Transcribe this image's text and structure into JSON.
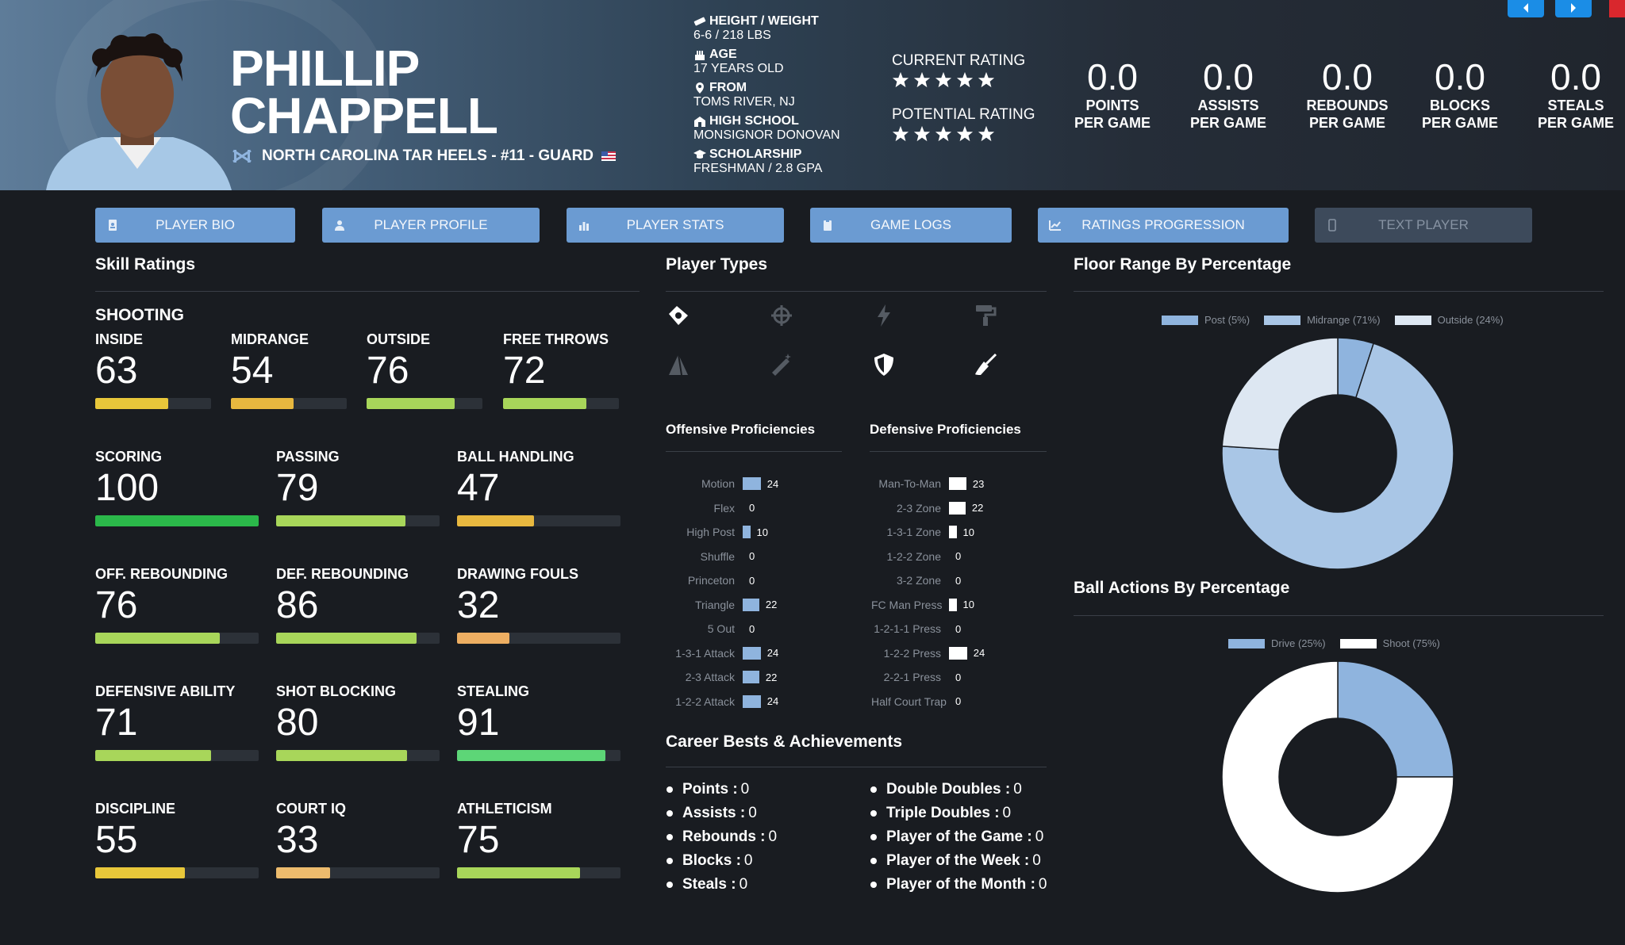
{
  "header": {
    "first_name": "PHILLIP",
    "last_name": "CHAPPELL",
    "team_line": "NORTH CAROLINA TAR HEELS - #11 - GUARD",
    "info": [
      {
        "label": "HEIGHT / WEIGHT",
        "value": "6-6 / 218 LBS",
        "icon": "ruler-icon"
      },
      {
        "label": "AGE",
        "value": "17 YEARS OLD",
        "icon": "cake-icon"
      },
      {
        "label": "FROM",
        "value": "TOMS RIVER, NJ",
        "icon": "location-pin-icon"
      },
      {
        "label": "HIGH SCHOOL",
        "value": "MONSIGNOR DONOVAN",
        "icon": "school-icon"
      },
      {
        "label": "SCHOLARSHIP",
        "value": "FRESHMAN / 2.8 GPA",
        "icon": "graduation-cap-icon"
      }
    ],
    "current_rating_label": "CURRENT RATING",
    "current_rating_stars": 5,
    "potential_rating_label": "POTENTIAL RATING",
    "potential_rating_stars": 5,
    "stats": [
      {
        "value": "0.0",
        "label1": "POINTS",
        "label2": "PER GAME"
      },
      {
        "value": "0.0",
        "label1": "ASSISTS",
        "label2": "PER GAME"
      },
      {
        "value": "0.0",
        "label1": "REBOUNDS",
        "label2": "PER GAME"
      },
      {
        "value": "0.0",
        "label1": "BLOCKS",
        "label2": "PER GAME"
      },
      {
        "value": "0.0",
        "label1": "STEALS",
        "label2": "PER GAME"
      }
    ]
  },
  "tabs": [
    {
      "label": "PLAYER BIO",
      "icon": "id-card-icon",
      "enabled": true
    },
    {
      "label": "PLAYER PROFILE",
      "icon": "profile-icon",
      "enabled": true
    },
    {
      "label": "PLAYER STATS",
      "icon": "bar-chart-icon",
      "enabled": true
    },
    {
      "label": "GAME LOGS",
      "icon": "clipboard-icon",
      "enabled": true
    },
    {
      "label": "RATINGS PROGRESSION",
      "icon": "line-chart-icon",
      "enabled": true
    },
    {
      "label": "TEXT PLAYER",
      "icon": "phone-icon",
      "enabled": false
    }
  ],
  "skills": {
    "title": "Skill Ratings",
    "group_title": "SHOOTING",
    "items": [
      {
        "label": "INSIDE",
        "value": 63,
        "color": "#e8c73a"
      },
      {
        "label": "MIDRANGE",
        "value": 54,
        "color": "#e8b83f"
      },
      {
        "label": "OUTSIDE",
        "value": 76,
        "color": "#a8d65a"
      },
      {
        "label": "FREE THROWS",
        "value": 72,
        "color": "#a8d65a"
      },
      {
        "label": "SCORING",
        "value": 100,
        "color": "#2bb84a"
      },
      {
        "label": "PASSING",
        "value": 79,
        "color": "#a8d65a"
      },
      {
        "label": "BALL HANDLING",
        "value": 47,
        "color": "#e8b83f"
      },
      {
        "label": "OFF. REBOUNDING",
        "value": 76,
        "color": "#a8d65a"
      },
      {
        "label": "DEF. REBOUNDING",
        "value": 86,
        "color": "#a8d65a"
      },
      {
        "label": "DRAWING FOULS",
        "value": 32,
        "color": "#edae62"
      },
      {
        "label": "DEFENSIVE ABILITY",
        "value": 71,
        "color": "#a8d65a"
      },
      {
        "label": "SHOT BLOCKING",
        "value": 80,
        "color": "#a8d65a"
      },
      {
        "label": "STEALING",
        "value": 91,
        "color": "#5dd677"
      },
      {
        "label": "DISCIPLINE",
        "value": 55,
        "color": "#e8c73a"
      },
      {
        "label": "COURT IQ",
        "value": 33,
        "color": "#edbb6d"
      },
      {
        "label": "ATHLETICISM",
        "value": 75,
        "color": "#a8d65a"
      }
    ]
  },
  "player_types": {
    "title": "Player Types",
    "icons": [
      {
        "name": "ball-handler-icon",
        "active": true
      },
      {
        "name": "crosshair-icon",
        "active": false
      },
      {
        "name": "lightning-icon",
        "active": false
      },
      {
        "name": "paint-roller-icon",
        "active": false
      },
      {
        "name": "pyramid-icon",
        "active": false
      },
      {
        "name": "magic-wand-icon",
        "active": false
      },
      {
        "name": "shield-icon",
        "active": true
      },
      {
        "name": "broom-icon",
        "active": true
      }
    ]
  },
  "offensive": {
    "title": "Offensive Proficiencies",
    "rows": [
      {
        "name": "Motion",
        "value": 24
      },
      {
        "name": "Flex",
        "value": 0
      },
      {
        "name": "High Post",
        "value": 10
      },
      {
        "name": "Shuffle",
        "value": 0
      },
      {
        "name": "Princeton",
        "value": 0
      },
      {
        "name": "Triangle",
        "value": 22
      },
      {
        "name": "5 Out",
        "value": 0
      },
      {
        "name": "1-3-1 Attack",
        "value": 24
      },
      {
        "name": "2-3 Attack",
        "value": 22
      },
      {
        "name": "1-2-2 Attack",
        "value": 24
      }
    ]
  },
  "defensive": {
    "title": "Defensive Proficiencies",
    "rows": [
      {
        "name": "Man-To-Man",
        "value": 23
      },
      {
        "name": "2-3 Zone",
        "value": 22
      },
      {
        "name": "1-3-1 Zone",
        "value": 10
      },
      {
        "name": "1-2-2 Zone",
        "value": 0
      },
      {
        "name": "3-2 Zone",
        "value": 0
      },
      {
        "name": "FC Man Press",
        "value": 10
      },
      {
        "name": "1-2-1-1 Press",
        "value": 0
      },
      {
        "name": "1-2-2 Press",
        "value": 24
      },
      {
        "name": "2-2-1 Press",
        "value": 0
      },
      {
        "name": "Half Court Trap",
        "value": 0
      }
    ]
  },
  "career": {
    "title": "Career Bests & Achievements",
    "left": [
      {
        "label": "Points :",
        "value": "0"
      },
      {
        "label": "Assists :",
        "value": "0"
      },
      {
        "label": "Rebounds :",
        "value": "0"
      },
      {
        "label": "Blocks :",
        "value": "0"
      },
      {
        "label": "Steals :",
        "value": "0"
      }
    ],
    "right": [
      {
        "label": "Double Doubles :",
        "value": "0"
      },
      {
        "label": "Triple Doubles :",
        "value": "0"
      },
      {
        "label": "Player of the Game :",
        "value": "0"
      },
      {
        "label": "Player of the Week :",
        "value": "0"
      },
      {
        "label": "Player of the Month :",
        "value": "0"
      }
    ]
  },
  "chart_data": [
    {
      "type": "pie",
      "title": "Floor Range By Percentage",
      "categories": [
        "Post (5%)",
        "Midrange (71%)",
        "Outside (24%)"
      ],
      "values": [
        5,
        71,
        24
      ],
      "colors": [
        "#8fb4de",
        "#a9c6e6",
        "#dde7f2"
      ],
      "legend": "top"
    },
    {
      "type": "pie",
      "title": "Ball Actions By Percentage",
      "categories": [
        "Drive (25%)",
        "Shoot (75%)"
      ],
      "values": [
        25,
        75
      ],
      "colors": [
        "#8fb4de",
        "#ffffff"
      ],
      "legend": "top"
    }
  ]
}
